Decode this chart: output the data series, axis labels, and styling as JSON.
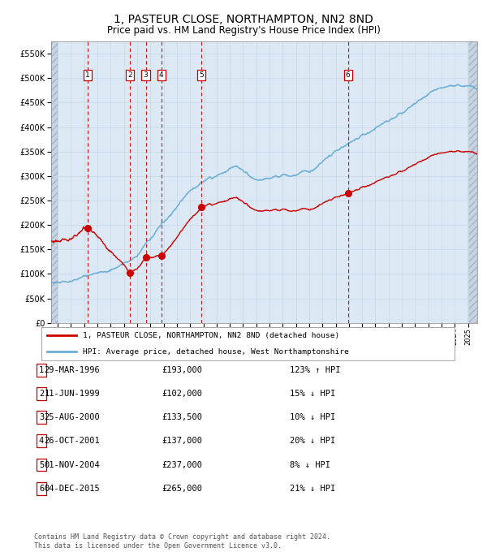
{
  "title": "1, PASTEUR CLOSE, NORTHAMPTON, NN2 8ND",
  "subtitle": "Price paid vs. HM Land Registry's House Price Index (HPI)",
  "title_fontsize": 10,
  "subtitle_fontsize": 8.5,
  "sales": [
    {
      "label": "1",
      "date_num": 1996.24,
      "price": 193000,
      "pct": "123% ↑ HPI",
      "date_str": "29-MAR-1996"
    },
    {
      "label": "2",
      "date_num": 1999.44,
      "price": 102000,
      "pct": "15% ↓ HPI",
      "date_str": "11-JUN-1999"
    },
    {
      "label": "3",
      "date_num": 2000.65,
      "price": 133500,
      "pct": "10% ↓ HPI",
      "date_str": "25-AUG-2000"
    },
    {
      "label": "4",
      "date_num": 2001.82,
      "price": 137000,
      "pct": "20% ↓ HPI",
      "date_str": "26-OCT-2001"
    },
    {
      "label": "5",
      "date_num": 2004.84,
      "price": 237000,
      "pct": "8% ↓ HPI",
      "date_str": "01-NOV-2004"
    },
    {
      "label": "6",
      "date_num": 2015.93,
      "price": 265000,
      "pct": "21% ↓ HPI",
      "date_str": "04-DEC-2015"
    }
  ],
  "hpi_color": "#6baed6",
  "sale_color": "#cc0000",
  "marker_color": "#cc0000",
  "vline_color": "#cc0000",
  "grid_color": "#c8d8e8",
  "plot_bg": "#dce9f5",
  "footnote": "Contains HM Land Registry data © Crown copyright and database right 2024.\nThis data is licensed under the Open Government Licence v3.0.",
  "ylim": [
    0,
    575000
  ],
  "xlim_start": 1993.5,
  "xlim_end": 2025.7,
  "legend_line1": "1, PASTEUR CLOSE, NORTHAMPTON, NN2 8ND (detached house)",
  "legend_line2": "HPI: Average price, detached house, West Northamptonshire"
}
